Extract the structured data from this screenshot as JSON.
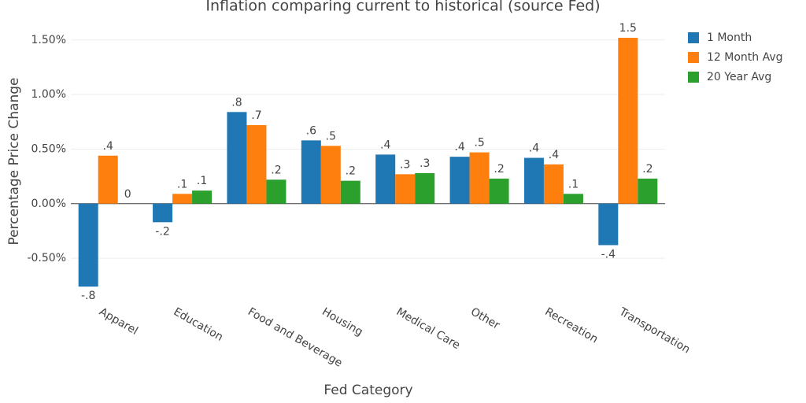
{
  "chart_data": {
    "type": "bar",
    "title": "Inflation comparing current to historical (source Fed)",
    "x_label": "Fed Category",
    "y_label": "Percentage Price Change",
    "categories": [
      "Apparel",
      "Education",
      "Food and Beverage",
      "Housing",
      "Medical Care",
      "Other",
      "Recreation",
      "Transportation"
    ],
    "series": [
      {
        "name": "1 Month",
        "color": "#1f77b4",
        "values": [
          -0.76,
          -0.17,
          0.84,
          0.58,
          0.45,
          0.43,
          0.42,
          -0.38
        ],
        "value_labels": [
          "-.8",
          "-.2",
          ".8",
          ".6",
          ".4",
          ".4",
          ".4",
          "-.4"
        ]
      },
      {
        "name": "12 Month Avg",
        "color": "#ff7f0e",
        "values": [
          0.44,
          0.09,
          0.72,
          0.53,
          0.27,
          0.47,
          0.36,
          1.52
        ],
        "value_labels": [
          ".4",
          ".1",
          ".7",
          ".5",
          ".3",
          ".5",
          ".4",
          "1.5"
        ]
      },
      {
        "name": "20 Year Avg",
        "color": "#2ca02c",
        "values": [
          0,
          0.12,
          0.22,
          0.21,
          0.28,
          0.23,
          0.09,
          0.23
        ],
        "value_labels": [
          "0",
          ".1",
          ".2",
          ".2",
          ".3",
          ".2",
          ".1",
          ".2"
        ]
      }
    ],
    "ylim": [
      -0.86,
      1.65
    ],
    "yticks": [
      {
        "value": -0.5,
        "label": "-0.50%"
      },
      {
        "value": 0,
        "label": "0.00%"
      },
      {
        "value": 0.5,
        "label": "0.50%"
      },
      {
        "value": 1,
        "label": "1.00%"
      },
      {
        "value": 1.5,
        "label": "1.50%"
      }
    ],
    "grid": true,
    "legend": "right"
  }
}
